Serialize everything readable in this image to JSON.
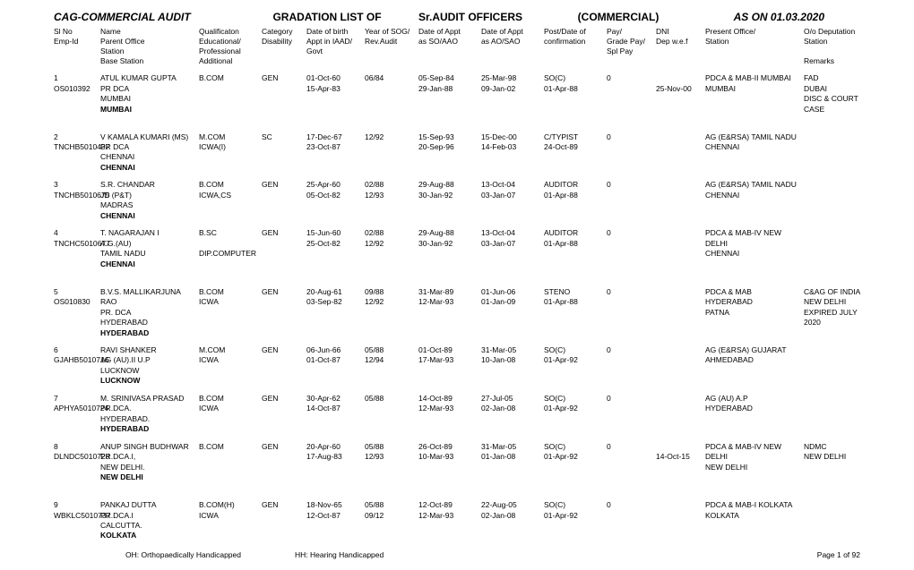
{
  "header": {
    "title_left": "CAG-COMMERCIAL AUDIT",
    "title_mid1": "GRADATION LIST OF",
    "title_mid2": "Sr.AUDIT OFFICERS",
    "title_mid3": "(COMMERCIAL)",
    "title_right": "AS ON 01.03.2020"
  },
  "colheads": {
    "c0": [
      "Sl No",
      "Emp-Id",
      "",
      ""
    ],
    "c1": [
      "Name",
      "Parent Office",
      "Station",
      "Base Station"
    ],
    "c2": [
      "Qualificaton",
      "Educational/",
      "Professional",
      "Additional"
    ],
    "c3": [
      "Category",
      "Disability",
      "",
      ""
    ],
    "c4": [
      "Date of birth",
      "Appt in IAAD/",
      "Govt",
      ""
    ],
    "c5": [
      "Year of SOG/",
      "Rev.Audit",
      "",
      ""
    ],
    "c6": [
      "Date of Appt",
      "as SO/AAO",
      "",
      ""
    ],
    "c7": [
      "Date of Appt",
      "as AO/SAO",
      "",
      ""
    ],
    "c8": [
      "Post/Date of",
      "confirmation",
      "",
      ""
    ],
    "c9": [
      "Pay/",
      "Grade Pay/",
      "Spl Pay",
      ""
    ],
    "c10": [
      "DNI",
      "Dep w.e.f",
      "",
      ""
    ],
    "c11": [
      "Present Office/",
      "Station",
      "",
      ""
    ],
    "c12": [
      "O/o Deputation",
      "Station",
      "",
      "Remarks"
    ]
  },
  "rows": [
    {
      "c0": [
        "1",
        "OS010392",
        "",
        ""
      ],
      "c1": [
        "ATUL KUMAR GUPTA",
        "PR DCA",
        "MUMBAI",
        "MUMBAI"
      ],
      "c2": [
        "B.COM",
        "",
        "",
        ""
      ],
      "c3": [
        "GEN",
        "",
        "",
        ""
      ],
      "c4": [
        "01-Oct-60",
        "15-Apr-83",
        "",
        ""
      ],
      "c5": [
        "06/84",
        "",
        "",
        ""
      ],
      "c6": [
        "05-Sep-84",
        "29-Jan-88",
        "",
        ""
      ],
      "c7": [
        "25-Mar-98",
        "09-Jan-02",
        "",
        ""
      ],
      "c8": [
        "SO(C)",
        "01-Apr-88",
        "",
        ""
      ],
      "c9": [
        "0",
        "",
        "",
        ""
      ],
      "c10": [
        "",
        "25-Nov-00",
        "",
        ""
      ],
      "c11": [
        "PDCA & MAB-II MUMBAI",
        "MUMBAI",
        "",
        ""
      ],
      "c12": [
        "FAD",
        "DUBAI",
        "DISC & COURT CASE",
        ""
      ]
    },
    {
      "c0": [
        "2",
        "TNCHB5010437",
        "",
        ""
      ],
      "c1": [
        "V KAMALA KUMARI (MS)",
        "PR DCA",
        "CHENNAI",
        "CHENNAI"
      ],
      "c2": [
        "M.COM",
        "ICWA(I)",
        "",
        ""
      ],
      "c3": [
        "SC",
        "",
        "",
        ""
      ],
      "c4": [
        "17-Dec-67",
        "23-Oct-87",
        "",
        ""
      ],
      "c5": [
        "12/92",
        "",
        "",
        ""
      ],
      "c6": [
        "15-Sep-93",
        "20-Sep-96",
        "",
        ""
      ],
      "c7": [
        "15-Dec-00",
        "14-Feb-03",
        "",
        ""
      ],
      "c8": [
        "C/TYPIST",
        "24-Oct-89",
        "",
        ""
      ],
      "c9": [
        "0",
        "",
        "",
        ""
      ],
      "c10": [
        "",
        "",
        "",
        ""
      ],
      "c11": [
        "AG (E&RSA) TAMIL NADU",
        "CHENNAI",
        "",
        ""
      ],
      "c12": [
        "",
        "",
        "",
        ""
      ]
    },
    {
      "c0": [
        "3",
        "TNCHB5010675",
        "",
        ""
      ],
      "c1": [
        "S.R. CHANDAR",
        "JD (P&T)",
        "MADRAS",
        "CHENNAI"
      ],
      "c2": [
        "B.COM",
        "ICWA,CS",
        "",
        ""
      ],
      "c3": [
        "GEN",
        "",
        "",
        ""
      ],
      "c4": [
        "25-Apr-60",
        "05-Oct-82",
        "",
        ""
      ],
      "c5": [
        "02/88",
        "12/93",
        "",
        ""
      ],
      "c6": [
        "29-Aug-88",
        "30-Jan-92",
        "",
        ""
      ],
      "c7": [
        "13-Oct-04",
        "03-Jan-07",
        "",
        ""
      ],
      "c8": [
        "AUDITOR",
        "01-Apr-88",
        "",
        ""
      ],
      "c9": [
        "0",
        "",
        "",
        ""
      ],
      "c10": [
        "",
        "",
        "",
        ""
      ],
      "c11": [
        "AG (E&RSA) TAMIL NADU",
        "CHENNAI",
        "",
        ""
      ],
      "c12": [
        "",
        "",
        "",
        ""
      ]
    },
    {
      "c0": [
        "4",
        "TNCHC5010677",
        "",
        ""
      ],
      "c1": [
        "T. NAGARAJAN I",
        "A.G.(AU)",
        "TAMIL NADU",
        "CHENNAI"
      ],
      "c2": [
        "B.SC",
        "",
        "DIP.COMPUTER",
        ""
      ],
      "c3": [
        "GEN",
        "",
        "",
        ""
      ],
      "c4": [
        "15-Jun-60",
        "25-Oct-82",
        "",
        ""
      ],
      "c5": [
        "02/88",
        "12/92",
        "",
        ""
      ],
      "c6": [
        "29-Aug-88",
        "30-Jan-92",
        "",
        ""
      ],
      "c7": [
        "13-Oct-04",
        "03-Jan-07",
        "",
        ""
      ],
      "c8": [
        "AUDITOR",
        "01-Apr-88",
        "",
        ""
      ],
      "c9": [
        "0",
        "",
        "",
        ""
      ],
      "c10": [
        "",
        "",
        "",
        ""
      ],
      "c11": [
        "PDCA & MAB-IV NEW DELHI",
        "CHENNAI",
        "",
        ""
      ],
      "c12": [
        "",
        "",
        "",
        ""
      ]
    },
    {
      "c0": [
        "5",
        "OS010830",
        "",
        ""
      ],
      "c1": [
        "B.V.S. MALLIKARJUNA RAO",
        "PR. DCA",
        "HYDERABAD",
        "HYDERABAD"
      ],
      "c2": [
        "B.COM",
        "ICWA",
        "",
        ""
      ],
      "c3": [
        "GEN",
        "",
        "",
        ""
      ],
      "c4": [
        "20-Aug-61",
        "03-Sep-82",
        "",
        ""
      ],
      "c5": [
        "09/88",
        "12/92",
        "",
        ""
      ],
      "c6": [
        "31-Mar-89",
        "12-Mar-93",
        "",
        ""
      ],
      "c7": [
        "01-Jun-06",
        "01-Jan-09",
        "",
        ""
      ],
      "c8": [
        "STENO",
        "01-Apr-88",
        "",
        ""
      ],
      "c9": [
        "0",
        "",
        "",
        ""
      ],
      "c10": [
        "",
        "",
        "",
        ""
      ],
      "c11": [
        "PDCA & MAB HYDERABAD",
        "PATNA",
        "",
        ""
      ],
      "c12": [
        "C&AG OF INDIA",
        "NEW DELHI",
        "EXPIRED JULY 2020",
        ""
      ]
    },
    {
      "c0": [
        "6",
        "GJAHB5010716",
        "",
        ""
      ],
      "c1": [
        "RAVI SHANKER",
        "AG (AU).II U.P",
        "LUCKNOW",
        "LUCKNOW"
      ],
      "c2": [
        "M.COM",
        "ICWA",
        "",
        ""
      ],
      "c3": [
        "GEN",
        "",
        "",
        ""
      ],
      "c4": [
        "06-Jun-66",
        "01-Oct-87",
        "",
        ""
      ],
      "c5": [
        "05/88",
        "12/94",
        "",
        ""
      ],
      "c6": [
        "01-Oct-89",
        "17-Mar-93",
        "",
        ""
      ],
      "c7": [
        "31-Mar-05",
        "10-Jan-08",
        "",
        ""
      ],
      "c8": [
        "SO(C)",
        "01-Apr-92",
        "",
        ""
      ],
      "c9": [
        "0",
        "",
        "",
        ""
      ],
      "c10": [
        "",
        "",
        "",
        ""
      ],
      "c11": [
        "AG (E&RSA) GUJARAT",
        "AHMEDABAD",
        "",
        ""
      ],
      "c12": [
        "",
        "",
        "",
        ""
      ]
    },
    {
      "c0": [
        "7",
        "APHYA5010724",
        "",
        ""
      ],
      "c1": [
        "M. SRINIVASA PRASAD",
        "PR.DCA.",
        "HYDERABAD.",
        "HYDERABAD"
      ],
      "c2": [
        "B.COM",
        "ICWA",
        "",
        ""
      ],
      "c3": [
        "GEN",
        "",
        "",
        ""
      ],
      "c4": [
        "30-Apr-62",
        "14-Oct-87",
        "",
        ""
      ],
      "c5": [
        "05/88",
        "",
        "",
        ""
      ],
      "c6": [
        "14-Oct-89",
        "12-Mar-93",
        "",
        ""
      ],
      "c7": [
        "27-Jul-05",
        "02-Jan-08",
        "",
        ""
      ],
      "c8": [
        "SO(C)",
        "01-Apr-92",
        "",
        ""
      ],
      "c9": [
        "0",
        "",
        "",
        ""
      ],
      "c10": [
        "",
        "",
        "",
        ""
      ],
      "c11": [
        "AG (AU) A.P",
        "HYDERABAD",
        "",
        ""
      ],
      "c12": [
        "",
        "",
        "",
        ""
      ]
    },
    {
      "c0": [
        "8",
        "DLNDC5010728",
        "",
        ""
      ],
      "c1": [
        "ANUP SINGH BUDHWAR",
        "PR.DCA.I,",
        "NEW DELHI.",
        "NEW DELHI"
      ],
      "c2": [
        "B.COM",
        "",
        "",
        ""
      ],
      "c3": [
        "GEN",
        "",
        "",
        ""
      ],
      "c4": [
        "20-Apr-60",
        "17-Aug-83",
        "",
        ""
      ],
      "c5": [
        "05/88",
        "12/93",
        "",
        ""
      ],
      "c6": [
        "26-Oct-89",
        "10-Mar-93",
        "",
        ""
      ],
      "c7": [
        "31-Mar-05",
        "01-Jan-08",
        "",
        ""
      ],
      "c8": [
        "SO(C)",
        "01-Apr-92",
        "",
        ""
      ],
      "c9": [
        "0",
        "",
        "",
        ""
      ],
      "c10": [
        "",
        "14-Oct-15",
        "",
        ""
      ],
      "c11": [
        "PDCA & MAB-IV NEW DELHI",
        "NEW DELHI",
        "",
        ""
      ],
      "c12": [
        "NDMC",
        "NEW DELHI",
        "",
        ""
      ]
    },
    {
      "c0": [
        "9",
        "WBKLC5010737",
        "",
        ""
      ],
      "c1": [
        "PANKAJ DUTTA",
        "PR.DCA.I",
        "CALCUTTA.",
        "KOLKATA"
      ],
      "c2": [
        "B.COM(H)",
        "ICWA",
        "",
        ""
      ],
      "c3": [
        "GEN",
        "",
        "",
        ""
      ],
      "c4": [
        "18-Nov-65",
        "12-Oct-87",
        "",
        ""
      ],
      "c5": [
        "05/88",
        "09/12",
        "",
        ""
      ],
      "c6": [
        "12-Oct-89",
        "12-Mar-93",
        "",
        ""
      ],
      "c7": [
        "22-Aug-05",
        "02-Jan-08",
        "",
        ""
      ],
      "c8": [
        "SO(C)",
        "01-Apr-92",
        "",
        ""
      ],
      "c9": [
        "0",
        "",
        "",
        ""
      ],
      "c10": [
        "",
        "",
        "",
        ""
      ],
      "c11": [
        "PDCA & MAB-I KOLKATA",
        "KOLKATA",
        "",
        ""
      ],
      "c12": [
        "",
        "",
        "",
        ""
      ]
    }
  ],
  "footer": {
    "oh": "OH: Orthopaedically Handicapped",
    "hh": "HH: Hearing Handicapped",
    "page": "Page 1 of 92"
  }
}
